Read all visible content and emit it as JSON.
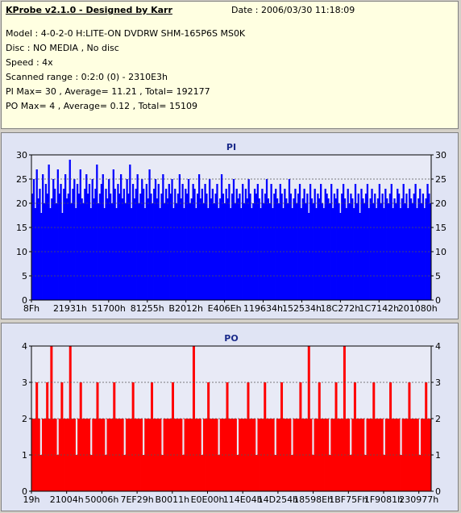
{
  "header": {
    "app_title": "KProbe v2.1.0 - Designed by Karr",
    "date": "Date : 2006/03/30 11:18:09",
    "lines": [
      "Model : 4-0-2-0 H:LITE-ON DVDRW SHM-165P6S MS0K",
      "Disc : NO MEDIA , No disc",
      "Speed : 4x",
      "Scanned range : 0:2:0 (0) - 2310E3h",
      "PI Max= 30 , Average= 11.21 , Total= 192177",
      "PO Max= 4 , Average= 0.12 , Total= 15109"
    ]
  },
  "colors": {
    "pi": "#0000ff",
    "po": "#ff0000",
    "plot_bg": "#e8eaf6",
    "title": "#1a2a8a"
  },
  "chart_data": [
    {
      "type": "bar",
      "title": "PI",
      "ylim": [
        0,
        30
      ],
      "yticks": [
        0,
        5,
        10,
        15,
        20,
        25,
        30
      ],
      "xticks": [
        "8Fh",
        "21931h",
        "51700h",
        "81255h",
        "B2012h",
        "E406Eh",
        "119634h",
        "152534h",
        "18C272h",
        "1C7142h",
        "201080h"
      ],
      "grid": "dashed",
      "max": 30,
      "average": 11.21,
      "series": [
        {
          "name": "PI",
          "color": "#0000ff",
          "values": [
            22,
            25,
            19,
            27,
            21,
            23,
            18,
            26,
            20,
            24,
            22,
            28,
            19,
            21,
            25,
            23,
            20,
            27,
            22,
            24,
            18,
            23,
            26,
            21,
            22,
            29,
            20,
            23,
            25,
            19,
            24,
            22,
            27,
            21,
            20,
            23,
            26,
            22,
            24,
            19,
            25,
            21,
            23,
            28,
            20,
            22,
            24,
            26,
            19,
            23,
            21,
            25,
            22,
            20,
            27,
            23,
            19,
            24,
            22,
            26,
            21,
            23,
            20,
            25,
            22,
            28,
            19,
            24,
            21,
            23,
            26,
            20,
            22,
            25,
            23,
            19,
            24,
            21,
            27,
            22,
            20,
            23,
            25,
            21,
            24,
            19,
            22,
            26,
            20,
            23,
            21,
            24,
            22,
            25,
            19,
            23,
            20,
            22,
            26,
            21,
            24,
            19,
            23,
            22,
            25,
            20,
            21,
            24,
            23,
            19,
            22,
            26,
            21,
            23,
            20,
            24,
            22,
            19,
            25,
            21,
            23,
            20,
            22,
            24,
            19,
            21,
            26,
            22,
            20,
            23,
            21,
            24,
            19,
            22,
            25,
            20,
            23,
            21,
            22,
            19,
            24,
            20,
            23,
            21,
            25,
            22,
            19,
            20,
            23,
            22,
            24,
            21,
            19,
            23,
            20,
            22,
            25,
            21,
            20,
            24,
            19,
            22,
            23,
            21,
            20,
            24,
            22,
            19,
            23,
            21,
            20,
            25,
            22,
            19,
            21,
            23,
            20,
            22,
            24,
            19,
            21,
            23,
            20,
            22,
            18,
            24,
            21,
            20,
            23,
            19,
            22,
            21,
            24,
            20,
            19,
            23,
            22,
            21,
            20,
            24,
            19,
            22,
            21,
            23,
            20,
            18,
            22,
            24,
            21,
            19,
            23,
            20,
            22,
            21,
            19,
            24,
            20,
            22,
            18,
            23,
            21,
            20,
            22,
            24,
            19,
            21,
            23,
            20,
            22,
            19,
            21,
            24,
            20,
            22,
            19,
            23,
            21,
            20,
            22,
            24,
            19,
            21,
            20,
            23,
            22,
            19,
            21,
            24,
            20,
            22,
            19,
            23,
            21,
            20,
            22,
            24,
            19,
            21,
            23,
            20,
            22,
            19,
            21,
            24,
            22,
            20
          ]
        }
      ]
    },
    {
      "type": "bar",
      "title": "PO",
      "ylim": [
        0,
        4
      ],
      "yticks": [
        0,
        1,
        2,
        3,
        4
      ],
      "xticks": [
        "19h",
        "21004h",
        "50006h",
        "7EF29h",
        "B0011h",
        "E0E00h",
        "114E04h",
        "14D254h",
        "18598Eh",
        "1BF75Fh",
        "1F9081h",
        "230977h"
      ],
      "grid": "dashed",
      "max": 4,
      "average": 0.12,
      "series": [
        {
          "name": "PO",
          "color": "#ff0000",
          "values": [
            2,
            2,
            3,
            2,
            1,
            2,
            2,
            3,
            2,
            4,
            2,
            2,
            1,
            2,
            3,
            2,
            2,
            2,
            4,
            2,
            2,
            1,
            2,
            3,
            2,
            2,
            2,
            2,
            1,
            2,
            2,
            3,
            2,
            2,
            2,
            1,
            2,
            2,
            2,
            3,
            2,
            2,
            2,
            2,
            1,
            2,
            2,
            2,
            3,
            2,
            2,
            2,
            2,
            1,
            2,
            2,
            2,
            3,
            2,
            2,
            2,
            2,
            1,
            2,
            2,
            2,
            2,
            3,
            2,
            2,
            2,
            2,
            1,
            2,
            2,
            2,
            2,
            4,
            2,
            2,
            2,
            1,
            2,
            2,
            3,
            2,
            2,
            2,
            2,
            1,
            2,
            2,
            2,
            3,
            2,
            2,
            2,
            2,
            1,
            2,
            2,
            2,
            2,
            3,
            2,
            2,
            2,
            1,
            2,
            2,
            2,
            3,
            2,
            2,
            2,
            2,
            1,
            2,
            2,
            3,
            2,
            2,
            2,
            2,
            1,
            2,
            2,
            2,
            3,
            2,
            2,
            2,
            4,
            2,
            1,
            2,
            2,
            3,
            2,
            2,
            2,
            2,
            1,
            2,
            2,
            3,
            2,
            2,
            2,
            4,
            2,
            2,
            1,
            2,
            3,
            2,
            2,
            2,
            2,
            1,
            2,
            2,
            2,
            3,
            2,
            2,
            2,
            2,
            1,
            2,
            2,
            3,
            2,
            2,
            2,
            2,
            1,
            2,
            2,
            2,
            3,
            2,
            2,
            2,
            2,
            1,
            2,
            2,
            3,
            2,
            2
          ]
        }
      ]
    }
  ]
}
